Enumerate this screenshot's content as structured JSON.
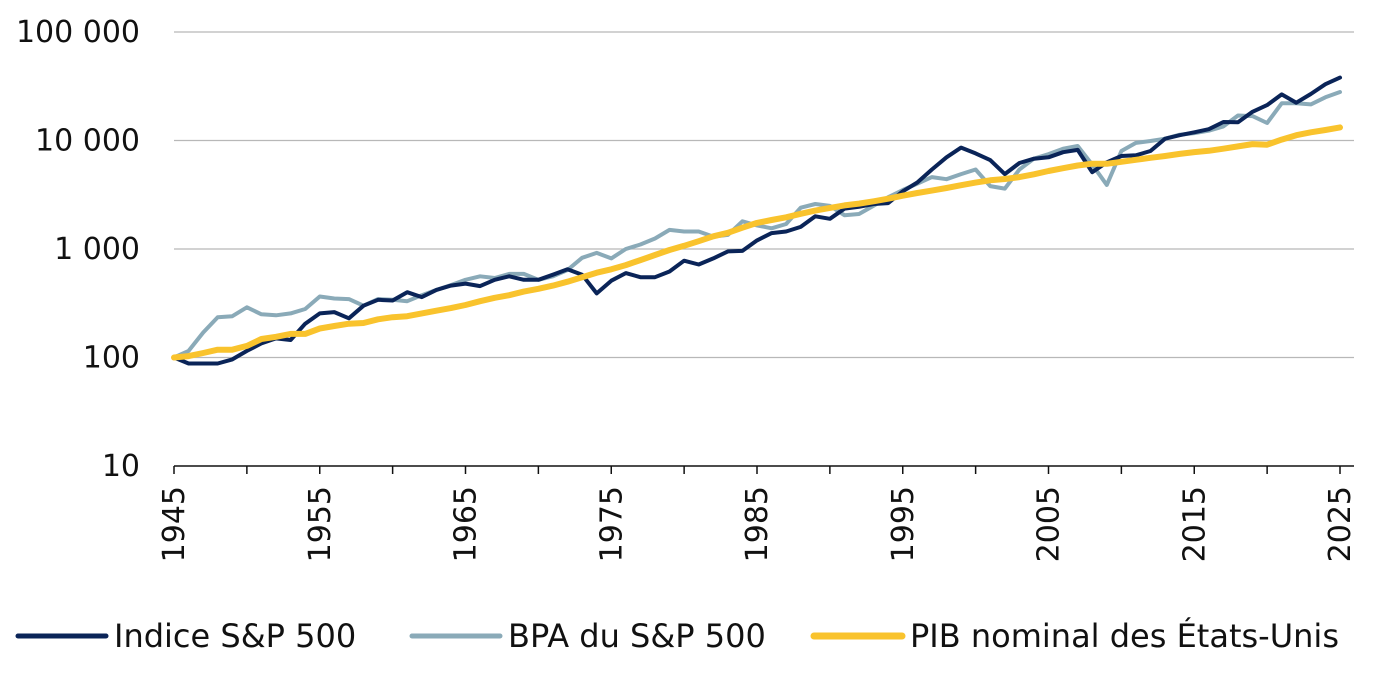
{
  "chart_data": {
    "type": "line",
    "title": "",
    "xlabel": "",
    "ylabel": "",
    "yscale": "log",
    "ylim": [
      10,
      100000
    ],
    "xlim": [
      1945,
      2025
    ],
    "grid": true,
    "legend_position": "bottom",
    "y_ticks": [
      {
        "value": 100000,
        "label": "100 000"
      },
      {
        "value": 10000,
        "label": "10 000"
      },
      {
        "value": 1000,
        "label": "1 000"
      },
      {
        "value": 100,
        "label": "100"
      },
      {
        "value": 10,
        "label": "10"
      }
    ],
    "x_ticks": [
      {
        "value": 1945,
        "label": "1945"
      },
      {
        "value": 1955,
        "label": "1955"
      },
      {
        "value": 1965,
        "label": "1965"
      },
      {
        "value": 1975,
        "label": "1975"
      },
      {
        "value": 1985,
        "label": "1985"
      },
      {
        "value": 1995,
        "label": "1995"
      },
      {
        "value": 2005,
        "label": "2005"
      },
      {
        "value": 2015,
        "label": "2015"
      },
      {
        "value": 2025,
        "label": "2025"
      }
    ],
    "x": [
      1945,
      1946,
      1947,
      1948,
      1949,
      1950,
      1951,
      1952,
      1953,
      1954,
      1955,
      1956,
      1957,
      1958,
      1959,
      1960,
      1961,
      1962,
      1963,
      1964,
      1965,
      1966,
      1967,
      1968,
      1969,
      1970,
      1971,
      1972,
      1973,
      1974,
      1975,
      1976,
      1977,
      1978,
      1979,
      1980,
      1981,
      1982,
      1983,
      1984,
      1985,
      1986,
      1987,
      1988,
      1989,
      1990,
      1991,
      1992,
      1993,
      1994,
      1995,
      1996,
      1997,
      1998,
      1999,
      2000,
      2001,
      2002,
      2003,
      2004,
      2005,
      2006,
      2007,
      2008,
      2009,
      2010,
      2011,
      2012,
      2013,
      2014,
      2015,
      2016,
      2017,
      2018,
      2019,
      2020,
      2021,
      2022,
      2023,
      2024,
      2025
    ],
    "series": [
      {
        "name": "Indice S&P 500",
        "color": "#0a2458",
        "values": [
          100,
          88,
          88,
          88,
          96,
          115,
          135,
          150,
          145,
          205,
          255,
          262,
          230,
          300,
          340,
          335,
          400,
          360,
          420,
          460,
          480,
          455,
          520,
          560,
          520,
          520,
          580,
          650,
          580,
          390,
          510,
          600,
          550,
          550,
          620,
          780,
          720,
          820,
          950,
          960,
          1200,
          1400,
          1450,
          1600,
          2000,
          1900,
          2350,
          2450,
          2600,
          2650,
          3400,
          4100,
          5400,
          7000,
          8600,
          7600,
          6600,
          4900,
          6200,
          6800,
          7000,
          7800,
          8200,
          5100,
          6300,
          7200,
          7300,
          8000,
          10400,
          11200,
          11900,
          12700,
          14800,
          14700,
          18400,
          21200,
          26600,
          22300,
          26800,
          33000,
          38000
        ]
      },
      {
        "name": "BPA du S&P 500",
        "color": "#8aaab8",
        "values": [
          100,
          115,
          170,
          235,
          240,
          290,
          250,
          245,
          255,
          280,
          365,
          350,
          345,
          300,
          345,
          340,
          330,
          375,
          420,
          465,
          520,
          560,
          540,
          590,
          590,
          520,
          560,
          640,
          830,
          920,
          820,
          1000,
          1100,
          1250,
          1500,
          1450,
          1450,
          1300,
          1350,
          1800,
          1650,
          1550,
          1700,
          2400,
          2600,
          2500,
          2050,
          2100,
          2500,
          3000,
          3500,
          4000,
          4600,
          4400,
          4900,
          5400,
          3800,
          3600,
          5400,
          6800,
          7500,
          8400,
          8900,
          6000,
          3900,
          8000,
          9500,
          9900,
          10400,
          11300,
          11700,
          12300,
          13500,
          17000,
          16800,
          14500,
          22000,
          22000,
          21500,
          25000,
          28000
        ]
      },
      {
        "name": "PIB nominal des États-Unis",
        "color": "#f9c32d",
        "values": [
          100,
          103,
          110,
          118,
          118,
          128,
          148,
          155,
          165,
          165,
          185,
          195,
          205,
          208,
          225,
          235,
          240,
          255,
          270,
          285,
          305,
          330,
          355,
          375,
          405,
          430,
          460,
          500,
          550,
          605,
          650,
          710,
          790,
          880,
          980,
          1070,
          1180,
          1310,
          1410,
          1570,
          1740,
          1850,
          1960,
          2110,
          2260,
          2390,
          2520,
          2620,
          2750,
          2910,
          3100,
          3280,
          3450,
          3650,
          3870,
          4090,
          4300,
          4420,
          4600,
          4880,
          5230,
          5560,
          5880,
          6110,
          6100,
          6370,
          6640,
          6930,
          7200,
          7520,
          7820,
          8040,
          8400,
          8820,
          9270,
          9150,
          10200,
          11200,
          11900,
          12500,
          13200
        ]
      }
    ]
  }
}
